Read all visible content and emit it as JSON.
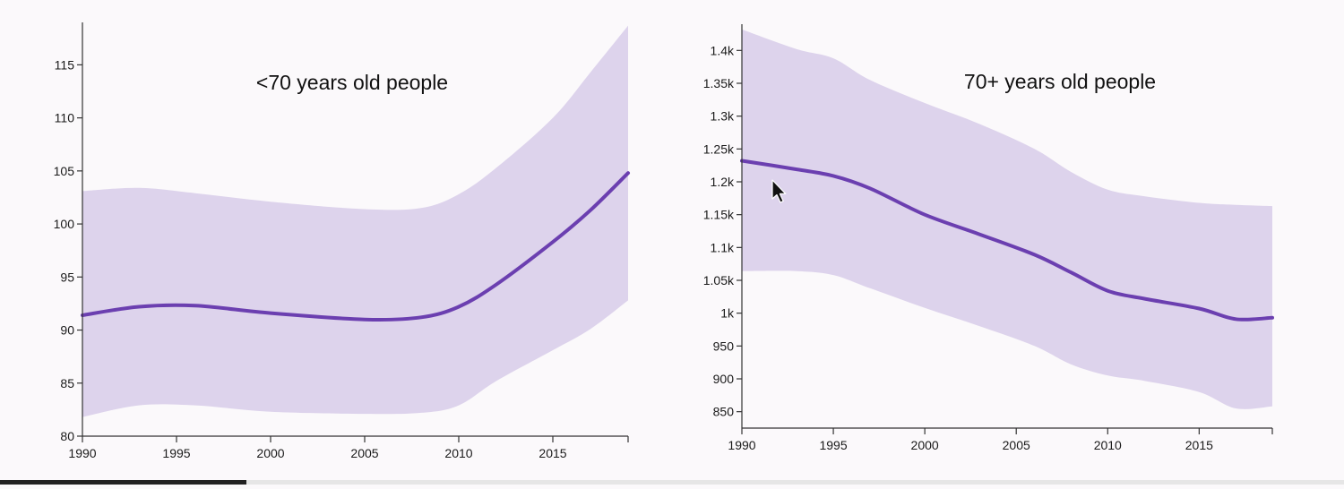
{
  "colors": {
    "band": "#ddd3ec",
    "line": "#6b3fb0",
    "axis": "#333333",
    "background": "#fbf9fb"
  },
  "icons": {
    "cursor": "mouse-pointer-icon"
  },
  "chart_data": [
    {
      "type": "area",
      "title": "<70 years old people",
      "xlabel": "",
      "ylabel": "",
      "xlim": [
        1990,
        2019
      ],
      "ylim": [
        80,
        119
      ],
      "xticks": [
        1990,
        1995,
        2000,
        2005,
        2010,
        2015
      ],
      "xtick_labels": [
        "1990",
        "1995",
        "2000",
        "2005",
        "2010",
        "2015"
      ],
      "yticks": [
        80,
        85,
        90,
        95,
        100,
        105,
        110,
        115
      ],
      "ytick_labels": [
        "80",
        "85",
        "90",
        "95",
        "100",
        "105",
        "110",
        "115"
      ],
      "grid": false,
      "x": [
        1990,
        1993,
        1996,
        2000,
        2005,
        2008,
        2010,
        2012,
        2015,
        2017,
        2019
      ],
      "series": [
        {
          "name": "estimate",
          "values": [
            91.4,
            92.2,
            92.3,
            91.6,
            91.0,
            91.2,
            92.2,
            94.3,
            98.3,
            101.3,
            104.8
          ]
        },
        {
          "name": "upper",
          "values": [
            103.1,
            103.4,
            102.9,
            102.1,
            101.4,
            101.5,
            102.8,
            105.3,
            110.0,
            114.3,
            118.7
          ]
        },
        {
          "name": "lower",
          "values": [
            81.8,
            82.9,
            82.9,
            82.3,
            82.1,
            82.2,
            82.9,
            85.2,
            88.1,
            90.1,
            92.8
          ]
        }
      ]
    },
    {
      "type": "area",
      "title": "70+ years old people",
      "xlabel": "",
      "ylabel": "",
      "xlim": [
        1990,
        2019
      ],
      "ylim": [
        825,
        1440
      ],
      "xticks": [
        1990,
        1995,
        2000,
        2005,
        2010,
        2015
      ],
      "xtick_labels": [
        "1990",
        "1995",
        "2000",
        "2005",
        "2010",
        "2015"
      ],
      "yticks": [
        850,
        900,
        950,
        1000,
        1050,
        1100,
        1150,
        1200,
        1250,
        1300,
        1350,
        1400
      ],
      "ytick_labels": [
        "850",
        "900",
        "950",
        "1k",
        "1.05k",
        "1.1k",
        "1.15k",
        "1.2k",
        "1.25k",
        "1.3k",
        "1.35k",
        "1.4k"
      ],
      "grid": false,
      "x": [
        1990,
        1993,
        1995,
        1997,
        2000,
        2003,
        2006,
        2008,
        2010,
        2012,
        2015,
        2017,
        2019
      ],
      "series": [
        {
          "name": "estimate",
          "values": [
            1232,
            1219,
            1209,
            1190,
            1150,
            1120,
            1089,
            1062,
            1034,
            1022,
            1007,
            991,
            993
          ]
        },
        {
          "name": "upper",
          "values": [
            1432,
            1402,
            1388,
            1355,
            1320,
            1288,
            1250,
            1215,
            1188,
            1178,
            1168,
            1165,
            1163
          ]
        },
        {
          "name": "lower",
          "values": [
            1064,
            1064,
            1058,
            1038,
            1008,
            980,
            950,
            922,
            905,
            897,
            880,
            855,
            858
          ]
        }
      ]
    }
  ]
}
